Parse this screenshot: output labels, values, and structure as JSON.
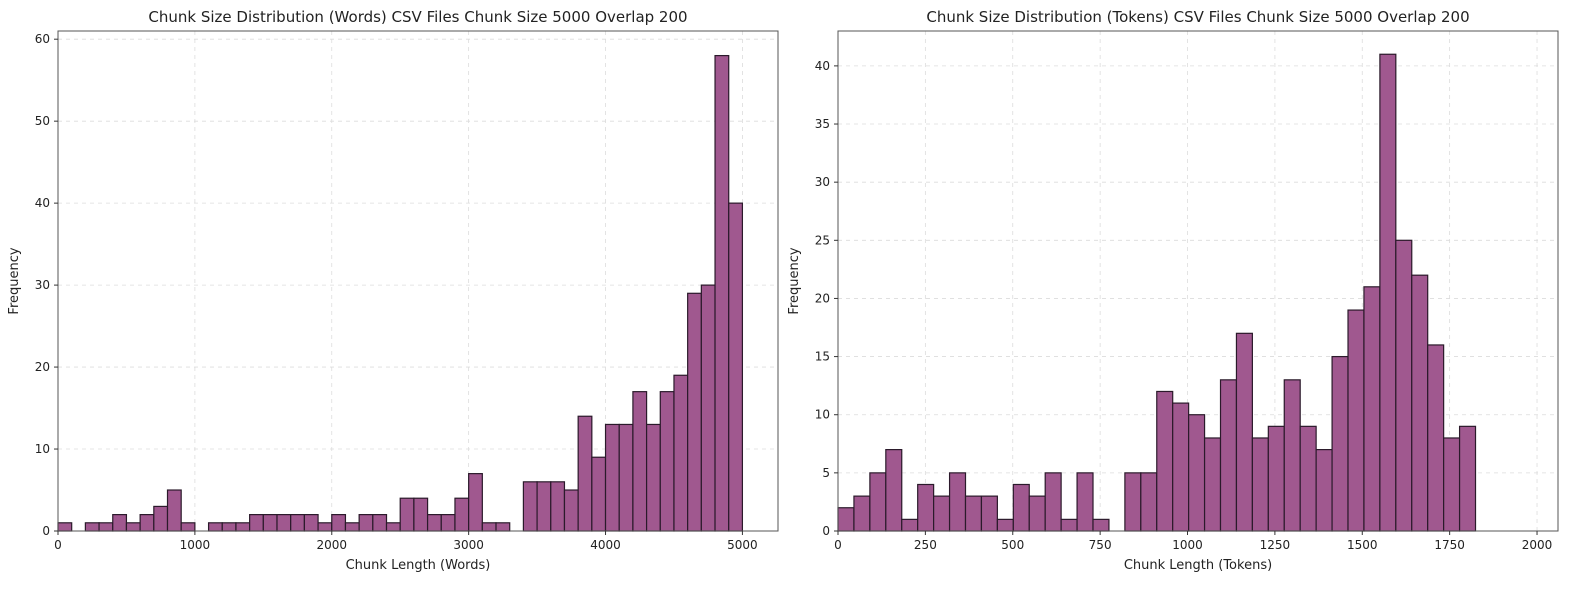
{
  "chart_data": [
    {
      "type": "histogram",
      "title": "Chunk Size Distribution (Words) CSV Files Chunk Size 5000 Overlap 200",
      "xlabel": "Chunk Length (Words)",
      "ylabel": "Frequency",
      "xlim": [
        0,
        5260
      ],
      "ylim": [
        0,
        61
      ],
      "xticks": [
        0,
        1000,
        2000,
        3000,
        4000,
        5000
      ],
      "yticks": [
        0,
        10,
        20,
        30,
        40,
        50,
        60
      ],
      "bin_start": 0,
      "bin_width": 100,
      "values": [
        1,
        0,
        1,
        1,
        2,
        1,
        2,
        3,
        5,
        1,
        0,
        1,
        1,
        1,
        2,
        2,
        2,
        2,
        2,
        1,
        2,
        1,
        2,
        2,
        1,
        4,
        4,
        2,
        2,
        4,
        7,
        1,
        1,
        0,
        6,
        6,
        6,
        5,
        14,
        9,
        13,
        13,
        17,
        13,
        17,
        19,
        29,
        30,
        58,
        40
      ],
      "bar_color": "#a0588f",
      "grid": true
    },
    {
      "type": "histogram",
      "title": "Chunk Size Distribution (Tokens) CSV Files Chunk Size 5000 Overlap 200",
      "xlabel": "Chunk Length (Tokens)",
      "ylabel": "Frequency",
      "xlim": [
        0,
        2060
      ],
      "ylim": [
        0,
        43
      ],
      "xticks": [
        0,
        250,
        500,
        750,
        1000,
        1250,
        1500,
        1750,
        2000
      ],
      "yticks": [
        0,
        5,
        10,
        15,
        20,
        25,
        30,
        35,
        40
      ],
      "bin_start": 0,
      "bin_width": 45.6,
      "values": [
        2,
        3,
        5,
        7,
        1,
        4,
        3,
        5,
        3,
        3,
        1,
        4,
        3,
        5,
        1,
        5,
        1,
        0,
        5,
        5,
        12,
        11,
        10,
        8,
        13,
        17,
        8,
        9,
        13,
        9,
        7,
        15,
        19,
        21,
        41,
        25,
        22,
        16,
        8,
        9
      ],
      "bar_color": "#a0588f",
      "grid": true
    }
  ]
}
